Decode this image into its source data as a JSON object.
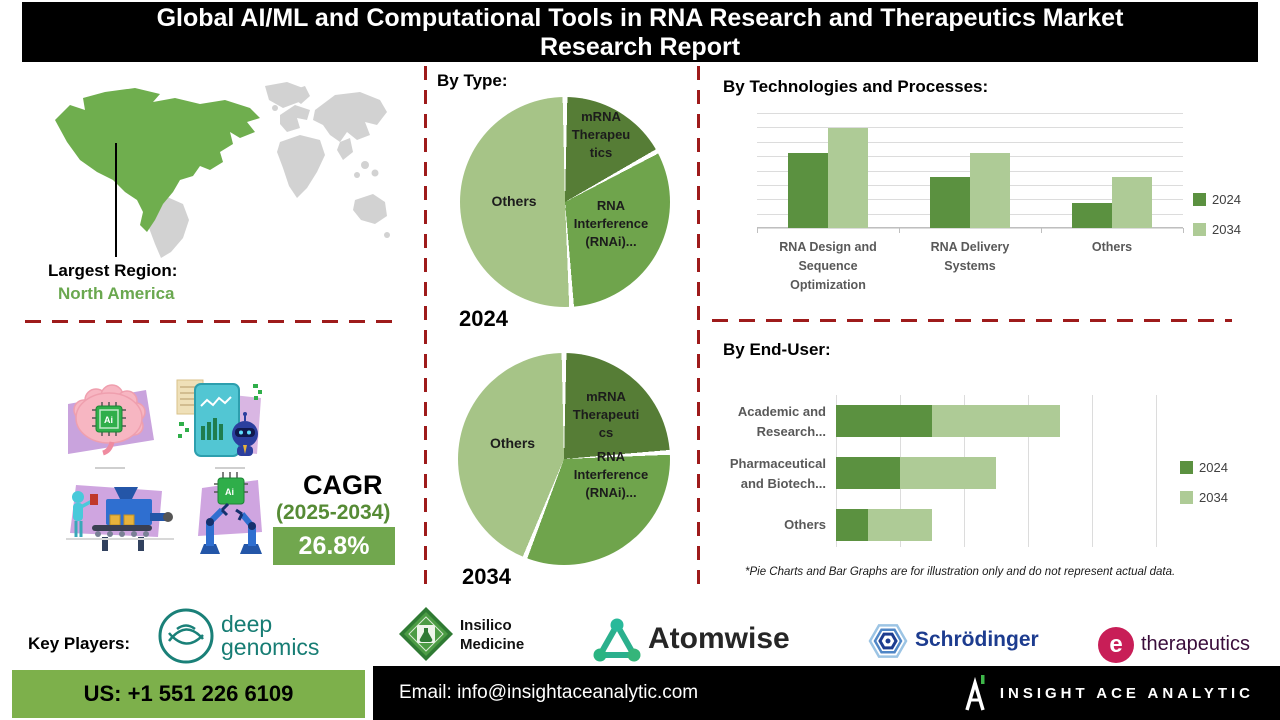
{
  "title": {
    "line1": "Global AI/ML and Computational Tools in RNA Research and Therapeutics Market",
    "line2": "Research Report"
  },
  "map": {
    "region_label": "Largest Region:",
    "region_value": "North America",
    "highlighted_region": "North America"
  },
  "cagr": {
    "label": "CAGR",
    "period": "(2025-2034)",
    "value": "26.8%"
  },
  "headings": {
    "by_type": "By Type:",
    "by_tech": "By Technologies and Processes:",
    "by_enduser": "By End-User:"
  },
  "pies": {
    "p2024": {
      "year": "2024",
      "slice_mrna": "mRNA\nTherapeu\ntics",
      "slice_rnai": "RNA\nInterference\n(RNAi)...",
      "slice_others": "Others"
    },
    "p2034": {
      "year": "2034",
      "slice_mrna": "mRNA\nTherapeuti\ncs",
      "slice_rnai": "RNA\nInterference\n(RNAi)...",
      "slice_others": "Others"
    }
  },
  "tech_chart": {
    "categories_display": [
      "RNA Design and\nSequence\nOptimization",
      "RNA Delivery\nSystems",
      "Others"
    ],
    "legend": [
      "2024",
      "2034"
    ]
  },
  "enduser_chart": {
    "categories_display": [
      "Academic and\nResearch...",
      "Pharmaceutical\nand Biotech...",
      "Others"
    ],
    "legend": [
      "2024",
      "2034"
    ]
  },
  "disclaimer": "*Pie Charts and Bar Graphs are for illustration only and do not represent actual data.",
  "key_players": {
    "label": "Key Players:",
    "deep_genomics": {
      "line1": "deep",
      "line2": "genomics"
    },
    "insilico": {
      "line1": "Insilico",
      "line2": "Medicine"
    },
    "atomwise": "Atomwise",
    "schrodinger": "Schrödinger",
    "etherapeutics": {
      "icon_letter": "e",
      "text": "therapeutics"
    }
  },
  "footer": {
    "phone": "US: +1 551 226 6109",
    "email": "Email: info@insightaceanalytic.com",
    "brand": "INSIGHT ACE ANALYTIC"
  },
  "colors": {
    "pie_dark": "#567d36",
    "pie_mid": "#6fa44c",
    "pie_light": "#a6c487",
    "bar_2024": "#5b9140",
    "bar_2034": "#aecb96",
    "dashed_divider": "#9e1b1b",
    "region_green": "#6aa84f",
    "cagr_green": "#568b35",
    "cagr_box": "#71a74e",
    "footer_green": "#7db04b",
    "map_gray": "#d2d2d2",
    "map_green": "#6fae4e"
  },
  "chart_data": [
    {
      "type": "pie",
      "title": "By Type: 2024",
      "labels": [
        "mRNA Therapeutics",
        "RNA Interference (RNAi)...",
        "Others"
      ],
      "values_pct": [
        17,
        32,
        51
      ],
      "colors": [
        "#567d36",
        "#6fa44c",
        "#a6c487"
      ],
      "note": "for illustration only"
    },
    {
      "type": "pie",
      "title": "By Type: 2034",
      "labels": [
        "mRNA Therapeutics",
        "RNA Interference (RNAi)...",
        "Others"
      ],
      "values_pct": [
        24,
        32,
        44
      ],
      "colors": [
        "#567d36",
        "#6fa44c",
        "#a6c487"
      ],
      "note": "for illustration only"
    },
    {
      "type": "bar",
      "title": "By Technologies and Processes:",
      "categories": [
        "RNA Design and Sequence Optimization",
        "RNA Delivery Systems",
        "Others"
      ],
      "series": [
        {
          "name": "2024",
          "color": "#5b9140",
          "values": [
            6.5,
            4.4,
            2.2
          ]
        },
        {
          "name": "2034",
          "color": "#aecb96",
          "values": [
            8.7,
            6.5,
            4.4
          ]
        }
      ],
      "ylim": [
        0,
        10
      ],
      "grid": true,
      "legend_position": "right",
      "note": "for illustration only"
    },
    {
      "type": "bar",
      "orientation": "horizontal",
      "stacked": true,
      "title": "By End-User:",
      "categories": [
        "Academic and Research...",
        "Pharmaceutical and Biotech...",
        "Others"
      ],
      "series": [
        {
          "name": "2024",
          "color": "#5b9140",
          "values": [
            1.5,
            1.0,
            0.5
          ]
        },
        {
          "name": "2034",
          "color": "#aecb96",
          "values": [
            2.0,
            1.5,
            1.0
          ]
        }
      ],
      "xlim": [
        0,
        5
      ],
      "grid": true,
      "legend_position": "right",
      "note": "for illustration only"
    }
  ]
}
